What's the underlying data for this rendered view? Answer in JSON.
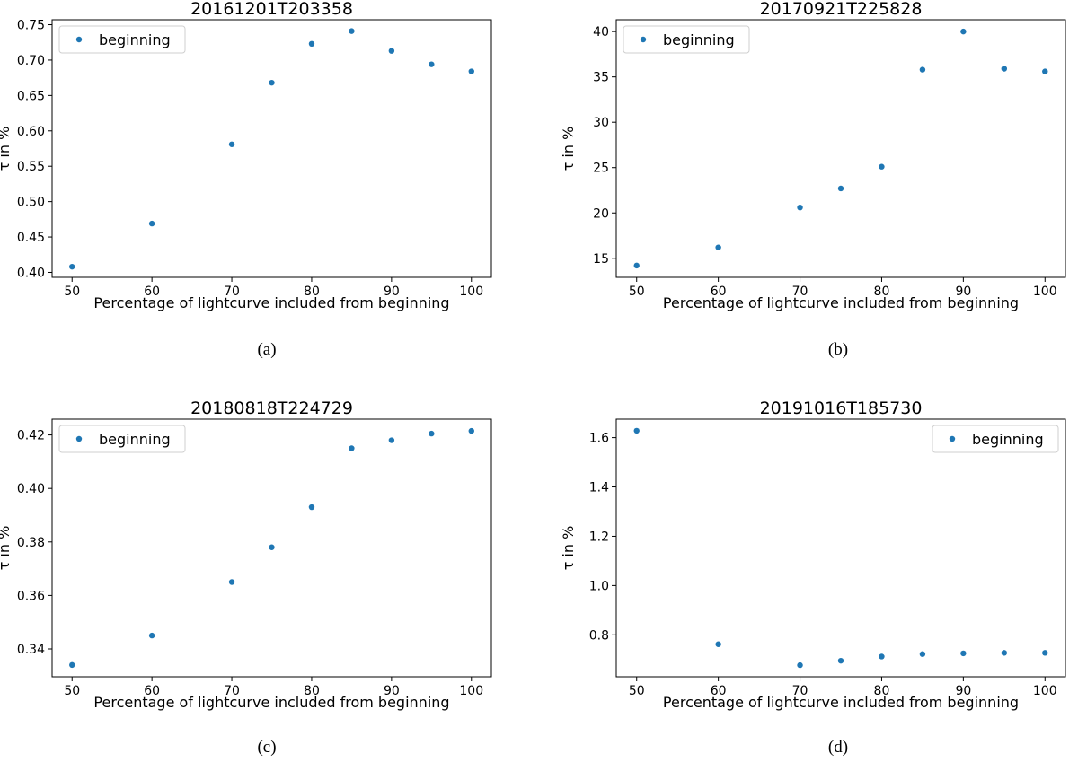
{
  "chart_data": [
    {
      "type": "scatter",
      "title": "20161201T203358",
      "xlabel": "Percentage of lightcurve included from beginning",
      "ylabel": "τ in %",
      "caption": "(a)",
      "legend_position": "upper-left",
      "x_ticks": [
        "50",
        "60",
        "70",
        "80",
        "90",
        "100"
      ],
      "y_ticks": [
        "0.40",
        "0.45",
        "0.50",
        "0.55",
        "0.60",
        "0.65",
        "0.70",
        "0.75"
      ],
      "xlim": [
        47.5,
        102.5
      ],
      "ylim": [
        0.393,
        0.757
      ],
      "series": [
        {
          "name": "beginning",
          "color": "#1f77b4",
          "x": [
            50,
            60,
            70,
            75,
            80,
            85,
            90,
            95,
            100
          ],
          "y": [
            0.408,
            0.469,
            0.581,
            0.668,
            0.723,
            0.741,
            0.713,
            0.694,
            0.684
          ]
        }
      ]
    },
    {
      "type": "scatter",
      "title": "20170921T225828",
      "xlabel": "Percentage of lightcurve included from beginning",
      "ylabel": "τ in %",
      "caption": "(b)",
      "legend_position": "upper-left",
      "x_ticks": [
        "50",
        "60",
        "70",
        "80",
        "90",
        "100"
      ],
      "y_ticks": [
        "15",
        "20",
        "25",
        "30",
        "35",
        "40"
      ],
      "xlim": [
        47.5,
        102.5
      ],
      "ylim": [
        12.9,
        41.3
      ],
      "series": [
        {
          "name": "beginning",
          "color": "#1f77b4",
          "x": [
            50,
            60,
            70,
            75,
            80,
            85,
            90,
            95,
            100
          ],
          "y": [
            14.2,
            16.2,
            20.6,
            22.7,
            25.1,
            35.8,
            40.0,
            35.9,
            35.6
          ]
        }
      ]
    },
    {
      "type": "scatter",
      "title": "20180818T224729",
      "xlabel": "Percentage of lightcurve included from beginning",
      "ylabel": "τ in %",
      "caption": "(c)",
      "legend_position": "upper-left",
      "x_ticks": [
        "50",
        "60",
        "70",
        "80",
        "90",
        "100"
      ],
      "y_ticks": [
        "0.34",
        "0.36",
        "0.38",
        "0.40",
        "0.42"
      ],
      "xlim": [
        47.5,
        102.5
      ],
      "ylim": [
        0.3296,
        0.4259
      ],
      "series": [
        {
          "name": "beginning",
          "color": "#1f77b4",
          "x": [
            50,
            60,
            70,
            75,
            80,
            85,
            90,
            95,
            100
          ],
          "y": [
            0.334,
            0.345,
            0.365,
            0.378,
            0.393,
            0.415,
            0.418,
            0.4205,
            0.4215
          ]
        }
      ]
    },
    {
      "type": "scatter",
      "title": "20191016T185730",
      "xlabel": "Percentage of lightcurve included from beginning",
      "ylabel": "τ in %",
      "caption": "(d)",
      "legend_position": "upper-right",
      "x_ticks": [
        "50",
        "60",
        "70",
        "80",
        "90",
        "100"
      ],
      "y_ticks": [
        "0.8",
        "1.0",
        "1.2",
        "1.4",
        "1.6"
      ],
      "xlim": [
        47.5,
        102.5
      ],
      "ylim": [
        0.63,
        1.675
      ],
      "series": [
        {
          "name": "beginning",
          "color": "#1f77b4",
          "x": [
            50,
            60,
            70,
            75,
            80,
            85,
            90,
            95,
            100
          ],
          "y": [
            1.628,
            0.762,
            0.677,
            0.695,
            0.712,
            0.722,
            0.725,
            0.727,
            0.727
          ]
        }
      ]
    }
  ]
}
